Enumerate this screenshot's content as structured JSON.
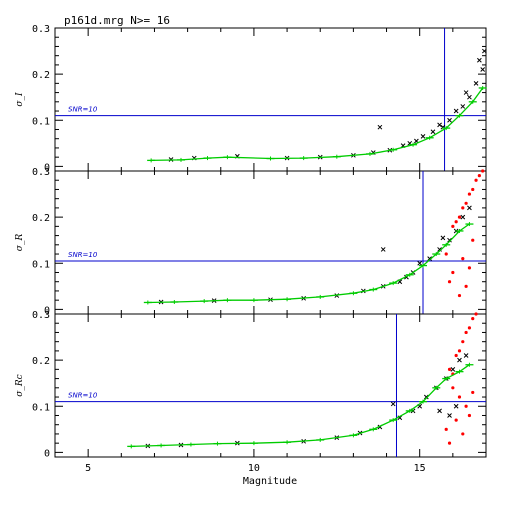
{
  "title": "p161d.mrg  N>= 16",
  "xlabel": "Magnitude",
  "snr_label": "SNR=10",
  "colors": {
    "axes": "#000000",
    "snr_line": "#0000cc",
    "mean_curve": "#00cc00",
    "matched_points": "#000000",
    "other_points": "#ff0000"
  },
  "chart_data": [
    {
      "type": "scatter",
      "panel": "I",
      "ylabel": "σ_I",
      "x_ticks": [
        "5",
        "10",
        "15"
      ],
      "y_ticks": [
        "0",
        "0.1",
        "0.2",
        "0.3"
      ],
      "xlim": [
        4,
        17
      ],
      "ylim": [
        -0.01,
        0.3
      ],
      "snr10_sigma": 0.11,
      "snr10_mag": 15.75,
      "mean_curve": [
        [
          6.9,
          0.013
        ],
        [
          7.8,
          0.014
        ],
        [
          8.6,
          0.018
        ],
        [
          9.2,
          0.02
        ],
        [
          10.5,
          0.017
        ],
        [
          11.5,
          0.018
        ],
        [
          12.5,
          0.021
        ],
        [
          13.5,
          0.027
        ],
        [
          14.2,
          0.036
        ],
        [
          14.8,
          0.047
        ],
        [
          15.3,
          0.062
        ],
        [
          15.8,
          0.083
        ],
        [
          16.2,
          0.11
        ],
        [
          16.6,
          0.14
        ],
        [
          16.9,
          0.17
        ]
      ],
      "sample_points": [
        [
          7.5,
          0.015
        ],
        [
          8.2,
          0.018
        ],
        [
          9.5,
          0.022
        ],
        [
          11.0,
          0.018
        ],
        [
          12.0,
          0.02
        ],
        [
          13.0,
          0.024
        ],
        [
          13.6,
          0.03
        ],
        [
          14.1,
          0.035
        ],
        [
          14.5,
          0.045
        ],
        [
          14.9,
          0.055
        ],
        [
          15.1,
          0.065
        ],
        [
          15.4,
          0.075
        ],
        [
          15.6,
          0.09
        ],
        [
          15.9,
          0.1
        ],
        [
          16.1,
          0.12
        ],
        [
          16.3,
          0.13
        ],
        [
          16.5,
          0.15
        ],
        [
          16.7,
          0.18
        ],
        [
          16.9,
          0.21
        ],
        [
          16.95,
          0.25
        ],
        [
          16.8,
          0.23
        ],
        [
          16.4,
          0.16
        ],
        [
          15.7,
          0.085
        ],
        [
          14.7,
          0.05
        ],
        [
          13.8,
          0.085
        ]
      ]
    },
    {
      "type": "scatter",
      "panel": "R",
      "ylabel": "σ_R",
      "x_ticks": [
        "5",
        "10",
        "15"
      ],
      "y_ticks": [
        "0",
        "0.1",
        "0.2",
        "0.3"
      ],
      "xlim": [
        4,
        17
      ],
      "ylim": [
        -0.01,
        0.3
      ],
      "snr10_sigma": 0.105,
      "snr10_mag": 15.1,
      "mean_curve": [
        [
          6.8,
          0.015
        ],
        [
          7.6,
          0.016
        ],
        [
          8.5,
          0.018
        ],
        [
          9.2,
          0.02
        ],
        [
          10.0,
          0.02
        ],
        [
          11.0,
          0.022
        ],
        [
          12.0,
          0.027
        ],
        [
          13.0,
          0.035
        ],
        [
          13.6,
          0.043
        ],
        [
          14.2,
          0.057
        ],
        [
          14.7,
          0.075
        ],
        [
          15.1,
          0.095
        ],
        [
          15.5,
          0.12
        ],
        [
          15.8,
          0.14
        ],
        [
          16.2,
          0.17
        ],
        [
          16.5,
          0.185
        ]
      ],
      "sample_points": [
        [
          7.2,
          0.016
        ],
        [
          8.8,
          0.019
        ],
        [
          10.5,
          0.021
        ],
        [
          11.5,
          0.024
        ],
        [
          12.5,
          0.03
        ],
        [
          13.3,
          0.04
        ],
        [
          13.9,
          0.05
        ],
        [
          14.4,
          0.06
        ],
        [
          14.8,
          0.08
        ],
        [
          15.0,
          0.1
        ],
        [
          15.3,
          0.11
        ],
        [
          15.6,
          0.13
        ],
        [
          15.9,
          0.15
        ],
        [
          16.1,
          0.17
        ],
        [
          16.3,
          0.2
        ],
        [
          16.5,
          0.22
        ],
        [
          13.9,
          0.13
        ],
        [
          15.7,
          0.155
        ],
        [
          14.6,
          0.07
        ]
      ],
      "faint_points": [
        [
          16.0,
          0.18
        ],
        [
          16.2,
          0.2
        ],
        [
          16.4,
          0.23
        ],
        [
          16.6,
          0.26
        ],
        [
          16.8,
          0.29
        ],
        [
          16.9,
          0.3
        ],
        [
          16.3,
          0.22
        ],
        [
          16.5,
          0.25
        ],
        [
          16.7,
          0.28
        ],
        [
          16.1,
          0.19
        ],
        [
          15.9,
          0.06
        ],
        [
          16.2,
          0.03
        ],
        [
          16.5,
          0.09
        ],
        [
          15.8,
          0.12
        ],
        [
          16.4,
          0.05
        ],
        [
          16.6,
          0.15
        ],
        [
          16.0,
          0.08
        ],
        [
          16.3,
          0.11
        ]
      ]
    },
    {
      "type": "scatter",
      "panel": "R_c",
      "ylabel": "σ_Rc",
      "x_ticks": [
        "5",
        "10",
        "15"
      ],
      "y_ticks": [
        "0",
        "0.1",
        "0.2",
        "0.3"
      ],
      "xlim": [
        4,
        17
      ],
      "ylim": [
        -0.01,
        0.3
      ],
      "snr10_sigma": 0.11,
      "snr10_mag": 14.3,
      "mean_curve": [
        [
          6.3,
          0.013
        ],
        [
          7.2,
          0.015
        ],
        [
          8.1,
          0.017
        ],
        [
          8.9,
          0.019
        ],
        [
          10.0,
          0.02
        ],
        [
          11.0,
          0.022
        ],
        [
          12.0,
          0.027
        ],
        [
          13.0,
          0.037
        ],
        [
          13.6,
          0.05
        ],
        [
          14.2,
          0.07
        ],
        [
          14.7,
          0.09
        ],
        [
          15.1,
          0.11
        ],
        [
          15.5,
          0.14
        ],
        [
          15.8,
          0.16
        ],
        [
          16.2,
          0.175
        ],
        [
          16.5,
          0.19
        ]
      ],
      "sample_points": [
        [
          6.8,
          0.014
        ],
        [
          7.8,
          0.016
        ],
        [
          9.5,
          0.02
        ],
        [
          11.5,
          0.024
        ],
        [
          12.5,
          0.032
        ],
        [
          13.2,
          0.042
        ],
        [
          13.8,
          0.055
        ],
        [
          14.4,
          0.075
        ],
        [
          14.8,
          0.09
        ],
        [
          15.0,
          0.1
        ],
        [
          15.2,
          0.12
        ],
        [
          15.5,
          0.14
        ],
        [
          15.8,
          0.16
        ],
        [
          16.0,
          0.18
        ],
        [
          16.2,
          0.2
        ],
        [
          16.4,
          0.21
        ],
        [
          14.2,
          0.105
        ],
        [
          15.6,
          0.09
        ],
        [
          15.9,
          0.08
        ],
        [
          16.1,
          0.1
        ]
      ],
      "faint_points": [
        [
          15.9,
          0.18
        ],
        [
          16.1,
          0.21
        ],
        [
          16.3,
          0.24
        ],
        [
          16.5,
          0.27
        ],
        [
          16.7,
          0.3
        ],
        [
          16.2,
          0.22
        ],
        [
          16.4,
          0.26
        ],
        [
          16.6,
          0.29
        ],
        [
          16.0,
          0.17
        ],
        [
          15.8,
          0.05
        ],
        [
          16.1,
          0.07
        ],
        [
          16.4,
          0.1
        ],
        [
          16.6,
          0.13
        ],
        [
          15.9,
          0.02
        ],
        [
          16.3,
          0.04
        ],
        [
          16.2,
          0.12
        ],
        [
          16.5,
          0.08
        ],
        [
          16.0,
          0.14
        ]
      ]
    }
  ]
}
